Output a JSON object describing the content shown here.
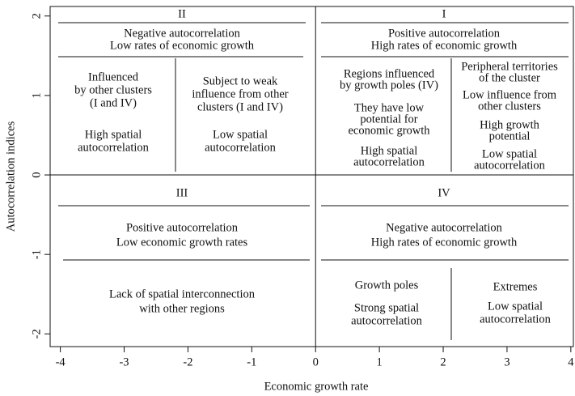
{
  "chart_data": {
    "type": "quadrant",
    "xlabel": "Economic growth rate",
    "ylabel": "Autocorrelation indices",
    "xlim": [
      -4.16,
      4.04
    ],
    "ylim": [
      -2.16,
      2.12
    ],
    "xticks": [
      -4,
      -3,
      -2,
      -1,
      0,
      1,
      2,
      3,
      4
    ],
    "yticks": [
      -2,
      -1,
      0,
      1,
      2
    ],
    "vline": 0,
    "hline": 0,
    "quadrants": [
      {
        "label": "II",
        "heading": [
          "Negative autocorrelation",
          "Low rates of economic growth"
        ],
        "columns": [
          [
            [
              "Influenced",
              "by other clusters",
              "(I and IV)"
            ],
            [
              "High spatial",
              "autocorrelation"
            ]
          ],
          [
            [
              "Subject to weak",
              "influence from other",
              "clusters (I and IV)"
            ],
            [
              "Low spatial",
              "autocorrelation"
            ]
          ]
        ]
      },
      {
        "label": "I",
        "heading": [
          "Positive autocorrelation",
          "High rates of economic growth"
        ],
        "columns": [
          [
            [
              "Regions influenced",
              "by growth poles (IV)"
            ],
            [
              "They have low",
              "potential for",
              "economic growth"
            ],
            [
              "High spatial",
              "autocorrelation"
            ]
          ],
          [
            [
              "Peripheral territories",
              "of the cluster"
            ],
            [
              "Low influence from",
              "other clusters"
            ],
            [
              "High growth",
              "potential"
            ],
            [
              "Low spatial",
              "autocorrelation"
            ]
          ]
        ]
      },
      {
        "label": "III",
        "heading": [
          "Positive autocorrelation",
          "Low economic growth rates"
        ],
        "columns": [
          [
            [
              "Lack of spatial interconnection",
              "with other regions"
            ]
          ]
        ]
      },
      {
        "label": "IV",
        "heading": [
          "Negative autocorrelation",
          "High rates of economic growth"
        ],
        "columns": [
          [
            [
              "Growth poles"
            ],
            [
              "Strong spatial",
              "autocorrelation"
            ]
          ],
          [
            [
              "Extremes"
            ],
            [
              "Low spatial",
              "autocorrelation"
            ]
          ]
        ]
      }
    ]
  }
}
